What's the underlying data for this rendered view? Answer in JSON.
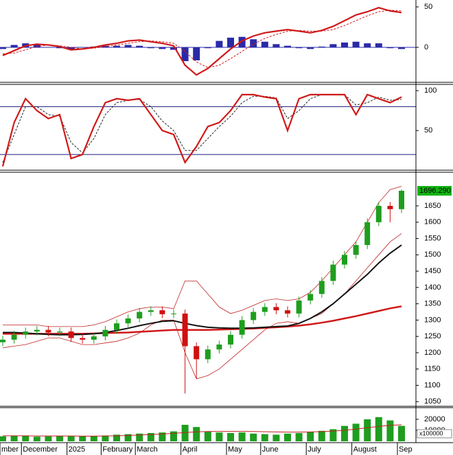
{
  "chart_data": [
    {
      "type": "line",
      "ylim": [
        -41.5,
        58.5
      ],
      "yticks": [
        0,
        50
      ],
      "zero_line": 0,
      "series": [
        {
          "kind": "bar",
          "color": "#2a2aa8",
          "values": [
            -2,
            3,
            5,
            3,
            0,
            -1,
            -3,
            0,
            1,
            2,
            2,
            3,
            2,
            -1,
            -2,
            -3,
            -17,
            -16,
            -1,
            8,
            12,
            13,
            10,
            7,
            4,
            2,
            -1,
            -2,
            1,
            4,
            6,
            7,
            5,
            5,
            -1,
            -2
          ]
        },
        {
          "kind": "line",
          "color": "#d01818",
          "dashed": true,
          "values": [
            -8,
            -7,
            -3,
            1,
            3,
            2,
            0,
            -2,
            -1,
            1,
            3,
            5,
            7,
            8,
            7,
            5,
            -5,
            -18,
            -25,
            -22,
            -14,
            -5,
            4,
            11,
            16,
            20,
            21,
            20,
            20,
            22,
            27,
            33,
            39,
            44,
            46,
            45
          ]
        },
        {
          "kind": "line",
          "color": "#d01818",
          "values": [
            -10,
            -4,
            2,
            4,
            3,
            1,
            -3,
            -2,
            0,
            3,
            5,
            8,
            9,
            7,
            5,
            2,
            -22,
            -34,
            -26,
            -14,
            -2,
            8,
            14,
            18,
            20,
            22,
            20,
            18,
            21,
            26,
            33,
            40,
            44,
            49,
            45,
            43
          ]
        }
      ]
    },
    {
      "type": "line",
      "ylim": [
        2,
        107
      ],
      "yticks": [
        50,
        100
      ],
      "hlines": [
        80,
        20
      ],
      "hline_color": "#1a1a80",
      "series": [
        {
          "kind": "line",
          "color": "#222",
          "dashed": true,
          "values": [
            10,
            45,
            80,
            80,
            70,
            68,
            35,
            22,
            40,
            70,
            85,
            88,
            89,
            80,
            62,
            50,
            25,
            25,
            40,
            55,
            68,
            85,
            93,
            93,
            91,
            65,
            75,
            90,
            95,
            95,
            95,
            82,
            85,
            92,
            88,
            89
          ]
        },
        {
          "kind": "line",
          "color": "#d01818",
          "values": [
            5,
            60,
            90,
            75,
            65,
            70,
            15,
            20,
            55,
            85,
            90,
            88,
            90,
            70,
            50,
            45,
            10,
            30,
            55,
            60,
            75,
            95,
            95,
            92,
            90,
            50,
            90,
            95,
            95,
            95,
            95,
            70,
            95,
            90,
            85,
            92
          ]
        }
      ]
    },
    {
      "type": "candlestick",
      "ylim": [
        1040,
        1751
      ],
      "yticks": [
        1050,
        1100,
        1150,
        1200,
        1250,
        1300,
        1350,
        1400,
        1450,
        1500,
        1550,
        1600,
        1650
      ],
      "up_color": "#1e9e1e",
      "down_color": "#d01010",
      "open": [
        1232,
        1240,
        1255,
        1265,
        1270,
        1262,
        1265,
        1245,
        1240,
        1250,
        1270,
        1290,
        1305,
        1325,
        1330,
        1318,
        1320,
        1220,
        1180,
        1210,
        1225,
        1255,
        1300,
        1325,
        1340,
        1330,
        1320,
        1360,
        1380,
        1420,
        1470,
        1500,
        1530,
        1600,
        1650,
        1640
      ],
      "high": [
        1252,
        1267,
        1277,
        1282,
        1282,
        1277,
        1277,
        1257,
        1262,
        1282,
        1302,
        1317,
        1337,
        1342,
        1342,
        1332,
        1332,
        1232,
        1222,
        1237,
        1267,
        1312,
        1337,
        1352,
        1352,
        1342,
        1372,
        1392,
        1432,
        1482,
        1512,
        1542,
        1612,
        1662,
        1662,
        1700
      ],
      "low": [
        1220,
        1228,
        1243,
        1253,
        1250,
        1250,
        1233,
        1228,
        1228,
        1238,
        1258,
        1278,
        1293,
        1313,
        1306,
        1306,
        1075,
        1120,
        1168,
        1198,
        1213,
        1243,
        1288,
        1313,
        1318,
        1308,
        1308,
        1348,
        1368,
        1408,
        1458,
        1488,
        1518,
        1588,
        1600,
        1628
      ],
      "close": [
        1240,
        1255,
        1265,
        1270,
        1262,
        1265,
        1245,
        1240,
        1250,
        1270,
        1290,
        1305,
        1325,
        1330,
        1318,
        1320,
        1220,
        1180,
        1210,
        1225,
        1255,
        1300,
        1325,
        1340,
        1330,
        1320,
        1360,
        1380,
        1420,
        1470,
        1500,
        1530,
        1600,
        1650,
        1640,
        1696.29
      ],
      "last_price": {
        "value": 1696.29,
        "label": "1696.290",
        "color": "#12b412"
      },
      "series": [
        {
          "color": "#c02020",
          "width": 0.8,
          "values": [
            1285,
            1285,
            1285,
            1285,
            1280,
            1280,
            1280,
            1280,
            1285,
            1295,
            1310,
            1325,
            1335,
            1340,
            1340,
            1335,
            1420,
            1420,
            1380,
            1340,
            1320,
            1330,
            1345,
            1360,
            1365,
            1360,
            1365,
            1385,
            1420,
            1460,
            1500,
            1540,
            1600,
            1660,
            1700,
            1710
          ]
        },
        {
          "color": "#c02020",
          "width": 0.8,
          "values": [
            1215,
            1220,
            1225,
            1235,
            1245,
            1245,
            1235,
            1225,
            1225,
            1230,
            1235,
            1245,
            1260,
            1285,
            1300,
            1300,
            1200,
            1120,
            1130,
            1150,
            1180,
            1210,
            1240,
            1270,
            1290,
            1295,
            1290,
            1305,
            1320,
            1350,
            1380,
            1420,
            1460,
            1500,
            1540,
            1565
          ]
        },
        {
          "color": "#d01818",
          "width": 2.5,
          "values": [
            1258,
            1258,
            1258,
            1258,
            1258,
            1258,
            1258,
            1258,
            1259,
            1260,
            1261,
            1262,
            1264,
            1266,
            1268,
            1270,
            1270,
            1270,
            1270,
            1271,
            1272,
            1273,
            1274,
            1276,
            1278,
            1280,
            1283,
            1287,
            1292,
            1298,
            1305,
            1312,
            1320,
            1328,
            1336,
            1342
          ]
        },
        {
          "color": "#111",
          "width": 2,
          "values": [
            1262,
            1262,
            1260,
            1258,
            1256,
            1255,
            1255,
            1256,
            1258,
            1262,
            1268,
            1275,
            1283,
            1290,
            1296,
            1298,
            1290,
            1283,
            1278,
            1276,
            1275,
            1275,
            1276,
            1278,
            1280,
            1282,
            1290,
            1305,
            1325,
            1350,
            1380,
            1410,
            1440,
            1475,
            1505,
            1530
          ]
        }
      ]
    },
    {
      "type": "bar",
      "ylim": [
        0,
        30000
      ],
      "yticks": [
        10000,
        20000
      ],
      "unit_label": "x100000",
      "color": "#1e9e1e",
      "categories": [
        "mber",
        null,
        "December",
        null,
        null,
        null,
        "2025",
        null,
        null,
        "February",
        null,
        null,
        "March",
        null,
        null,
        null,
        "April",
        null,
        null,
        null,
        "May",
        null,
        null,
        "June",
        null,
        null,
        null,
        "July",
        null,
        null,
        null,
        "August",
        null,
        null,
        null,
        "Sep"
      ],
      "values": [
        4500,
        5000,
        4800,
        4200,
        4500,
        5000,
        4600,
        4400,
        4800,
        5200,
        6000,
        6500,
        7000,
        7500,
        8000,
        9000,
        15000,
        13000,
        9000,
        8000,
        7500,
        8000,
        7000,
        6500,
        6000,
        7000,
        7500,
        8500,
        9500,
        11000,
        14000,
        16000,
        20000,
        22000,
        19000,
        14000
      ],
      "series": [
        {
          "color": "#c02020",
          "values": [
            5000,
            5000,
            5000,
            4900,
            4800,
            4800,
            4800,
            4700,
            4700,
            4800,
            5000,
            5300,
            5700,
            6100,
            6600,
            7200,
            8000,
            8600,
            8900,
            9000,
            9000,
            9000,
            8900,
            8700,
            8500,
            8400,
            8400,
            8500,
            8800,
            9300,
            10000,
            11000,
            12300,
            13500,
            14500,
            15000
          ]
        }
      ]
    }
  ]
}
